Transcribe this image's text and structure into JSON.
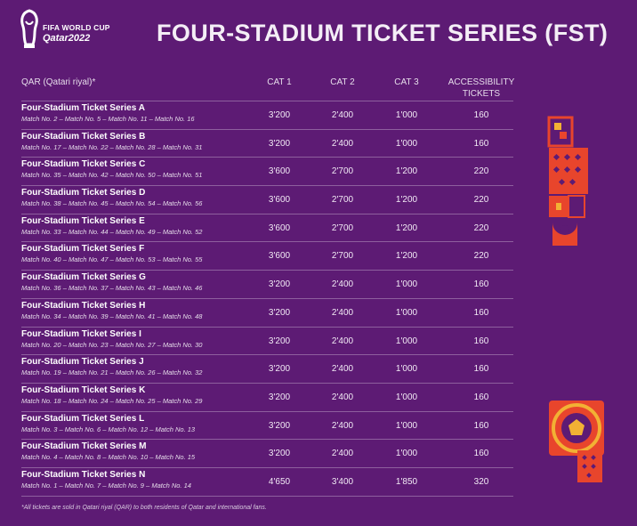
{
  "logo": {
    "line1": "FIFA WORLD CUP",
    "line2": "Qatar2022"
  },
  "title": "FOUR-STADIUM TICKET SERIES (FST)",
  "header": {
    "currency": "QAR (Qatari riyal)*",
    "cat1": "CAT 1",
    "cat2": "CAT 2",
    "cat3": "CAT 3",
    "accessibility_line1": "ACCESSIBILITY",
    "accessibility_line2": "TICKETS"
  },
  "rows": [
    {
      "name": "Four-Stadium Ticket Series A",
      "matches": "Match No. 2 – Match No. 5 – Match No. 11 – Match No. 16",
      "cat1": "3'200",
      "cat2": "2'400",
      "cat3": "1'000",
      "acc": "160"
    },
    {
      "name": "Four-Stadium Ticket Series B",
      "matches": "Match No. 17 – Match No. 22 – Match No. 28 – Match No. 31",
      "cat1": "3'200",
      "cat2": "2'400",
      "cat3": "1'000",
      "acc": "160"
    },
    {
      "name": "Four-Stadium Ticket Series C",
      "matches": "Match No. 35 – Match No. 42 – Match No. 50 – Match No. 51",
      "cat1": "3'600",
      "cat2": "2'700",
      "cat3": "1'200",
      "acc": "220"
    },
    {
      "name": "Four-Stadium Ticket Series D",
      "matches": "Match No. 38 – Match No. 45 – Match No. 54 – Match No. 56",
      "cat1": "3'600",
      "cat2": "2'700",
      "cat3": "1'200",
      "acc": "220"
    },
    {
      "name": "Four-Stadium Ticket Series E",
      "matches": "Match No. 33 – Match No. 44 – Match No. 49 – Match No. 52",
      "cat1": "3'600",
      "cat2": "2'700",
      "cat3": "1'200",
      "acc": "220"
    },
    {
      "name": "Four-Stadium Ticket Series F",
      "matches": "Match No. 40 – Match No. 47 – Match No. 53 – Match No. 55",
      "cat1": "3'600",
      "cat2": "2'700",
      "cat3": "1'200",
      "acc": "220"
    },
    {
      "name": "Four-Stadium Ticket Series G",
      "matches": "Match No. 36 – Match No. 37 – Match No. 43 – Match No. 46",
      "cat1": "3'200",
      "cat2": "2'400",
      "cat3": "1'000",
      "acc": "160"
    },
    {
      "name": "Four-Stadium Ticket Series H",
      "matches": "Match No. 34 – Match No. 39 – Match No. 41 – Match No. 48",
      "cat1": "3'200",
      "cat2": "2'400",
      "cat3": "1'000",
      "acc": "160"
    },
    {
      "name": "Four-Stadium Ticket Series I",
      "matches": "Match No. 20 – Match No. 23 – Match No. 27 – Match No. 30",
      "cat1": "3'200",
      "cat2": "2'400",
      "cat3": "1'000",
      "acc": "160"
    },
    {
      "name": "Four-Stadium Ticket Series J",
      "matches": "Match No. 19 – Match No. 21 – Match No. 26 – Match No. 32",
      "cat1": "3'200",
      "cat2": "2'400",
      "cat3": "1'000",
      "acc": "160"
    },
    {
      "name": "Four-Stadium Ticket Series K",
      "matches": "Match No. 18 – Match No. 24 – Match No. 25 – Match No. 29",
      "cat1": "3'200",
      "cat2": "2'400",
      "cat3": "1'000",
      "acc": "160"
    },
    {
      "name": "Four-Stadium Ticket Series L",
      "matches": "Match No. 3 – Match No. 6 – Match No. 12 – Match No. 13",
      "cat1": "3'200",
      "cat2": "2'400",
      "cat3": "1'000",
      "acc": "160"
    },
    {
      "name": "Four-Stadium Ticket Series M",
      "matches": "Match No. 4 – Match No. 8 – Match No. 10 – Match No. 15",
      "cat1": "3'200",
      "cat2": "2'400",
      "cat3": "1'000",
      "acc": "160"
    },
    {
      "name": "Four-Stadium Ticket Series N",
      "matches": "Match No. 1 – Match No. 7 – Match No. 9 – Match No. 14",
      "cat1": "4'650",
      "cat2": "3'400",
      "cat3": "1'850",
      "acc": "320"
    }
  ],
  "footnote": "*All tickets are sold in Qatari riyal (QAR) to both residents of Qatar and international fans.",
  "colors": {
    "background": "#5d1b74",
    "accent": "#e8452c",
    "gold": "#f2b134"
  },
  "icons": {
    "logo": "world-cup-trophy-icon",
    "pattern_top": "geometric-pattern-icon",
    "pattern_bottom": "football-pattern-icon"
  }
}
